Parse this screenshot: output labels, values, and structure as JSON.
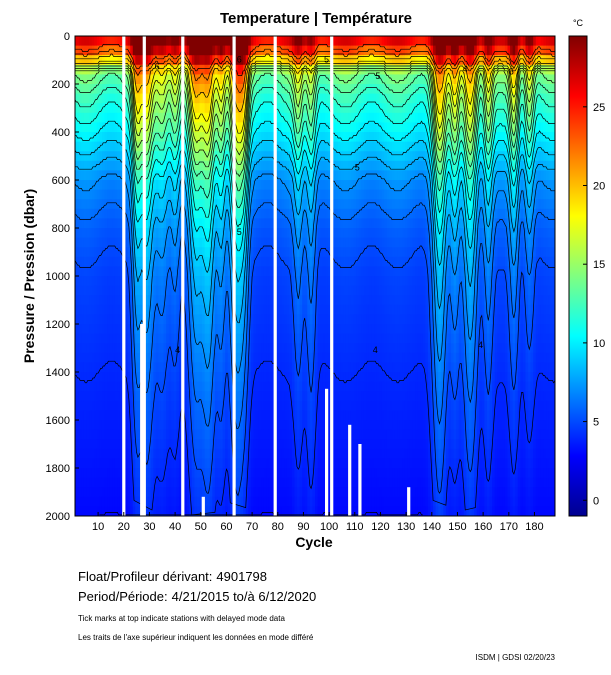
{
  "chart_data": {
    "type": "heatmap",
    "title": "Temperature | Température",
    "xlabel": "Cycle",
    "ylabel": "Pressure / Pression (dbar)",
    "colorbar_unit": "°C",
    "x_ticks": [
      10,
      20,
      30,
      40,
      50,
      60,
      70,
      80,
      90,
      100,
      110,
      120,
      130,
      140,
      150,
      160,
      170,
      180
    ],
    "xlim": [
      1,
      188
    ],
    "y_ticks": [
      0,
      200,
      400,
      600,
      800,
      1000,
      1200,
      1400,
      1600,
      1800,
      2000
    ],
    "ylim": [
      2000,
      0
    ],
    "colorbar_ticks": [
      0,
      5,
      10,
      15,
      20,
      25
    ],
    "colorbar_range": [
      -1,
      29.5
    ],
    "contour_labels_visible": [
      "4",
      "5",
      "6",
      "8",
      "10"
    ],
    "colormap": [
      "#00008f",
      "#0000ff",
      "#0080ff",
      "#00ffff",
      "#80ff80",
      "#ffff00",
      "#ff8000",
      "#ff0000",
      "#800000"
    ],
    "depth_profile": [
      {
        "pressure": 0,
        "temperature": 27
      },
      {
        "pressure": 50,
        "temperature": 24
      },
      {
        "pressure": 150,
        "temperature": 14
      },
      {
        "pressure": 250,
        "temperature": 12
      },
      {
        "pressure": 400,
        "temperature": 10
      },
      {
        "pressure": 600,
        "temperature": 7
      },
      {
        "pressure": 800,
        "temperature": 5.5
      },
      {
        "pressure": 1000,
        "temperature": 4.7
      },
      {
        "pressure": 1400,
        "temperature": 4
      },
      {
        "pressure": 2000,
        "temperature": 3
      }
    ],
    "warm_features": [
      {
        "center_cycle": 25,
        "width": 2,
        "depth": 1000,
        "intensity": 7
      },
      {
        "center_cycle": 29,
        "width": 3,
        "depth": 1100,
        "intensity": 8
      },
      {
        "center_cycle": 35,
        "width": 3,
        "depth": 900,
        "intensity": 6
      },
      {
        "center_cycle": 40,
        "width": 2,
        "depth": 800,
        "intensity": 5
      },
      {
        "center_cycle": 48,
        "width": 3,
        "depth": 1000,
        "intensity": 9
      },
      {
        "center_cycle": 53,
        "width": 3,
        "depth": 1100,
        "intensity": 10
      },
      {
        "center_cycle": 58,
        "width": 2,
        "depth": 900,
        "intensity": 7
      },
      {
        "center_cycle": 64,
        "width": 3,
        "depth": 1100,
        "intensity": 10
      },
      {
        "center_cycle": 67,
        "width": 2,
        "depth": 800,
        "intensity": 6
      },
      {
        "center_cycle": 88,
        "width": 2,
        "depth": 1000,
        "intensity": 4
      },
      {
        "center_cycle": 93,
        "width": 2,
        "depth": 1200,
        "intensity": 4
      },
      {
        "center_cycle": 143,
        "width": 3,
        "depth": 1200,
        "intensity": 9
      },
      {
        "center_cycle": 149,
        "width": 2,
        "depth": 800,
        "intensity": 7
      },
      {
        "center_cycle": 155,
        "width": 3,
        "depth": 1100,
        "intensity": 9
      },
      {
        "center_cycle": 162,
        "width": 2,
        "depth": 900,
        "intensity": 6
      },
      {
        "center_cycle": 172,
        "width": 2,
        "depth": 800,
        "intensity": 7
      },
      {
        "center_cycle": 178,
        "width": 2,
        "depth": 700,
        "intensity": 6
      }
    ],
    "data_gaps": [
      {
        "cycle": 20,
        "from": 0,
        "to": 2000
      },
      {
        "cycle": 27,
        "from": 1200,
        "to": 2000
      },
      {
        "cycle": 28,
        "from": 0,
        "to": 2000
      },
      {
        "cycle": 43,
        "from": 0,
        "to": 2000
      },
      {
        "cycle": 51,
        "from": 1920,
        "to": 2000
      },
      {
        "cycle": 63,
        "from": 0,
        "to": 2000
      },
      {
        "cycle": 79,
        "from": 0,
        "to": 2000
      },
      {
        "cycle": 99,
        "from": 1470,
        "to": 2000
      },
      {
        "cycle": 101,
        "from": 0,
        "to": 2000
      },
      {
        "cycle": 108,
        "from": 1620,
        "to": 2000
      },
      {
        "cycle": 112,
        "from": 1700,
        "to": 2000
      },
      {
        "cycle": 131,
        "from": 1880,
        "to": 2000
      }
    ]
  },
  "info": {
    "float_label": "Float/Profileur dérivant:",
    "float_id": "4901798",
    "period_label": "Period/Période:",
    "period_value": "4/21/2015  to/à  6/12/2020",
    "note_en": "Tick marks at top indicate stations with delayed mode data",
    "note_fr": "Les traits de l'axe supérieur indiquent les données en mode différé",
    "credit": "ISDM | GDSI  02/20/23"
  }
}
